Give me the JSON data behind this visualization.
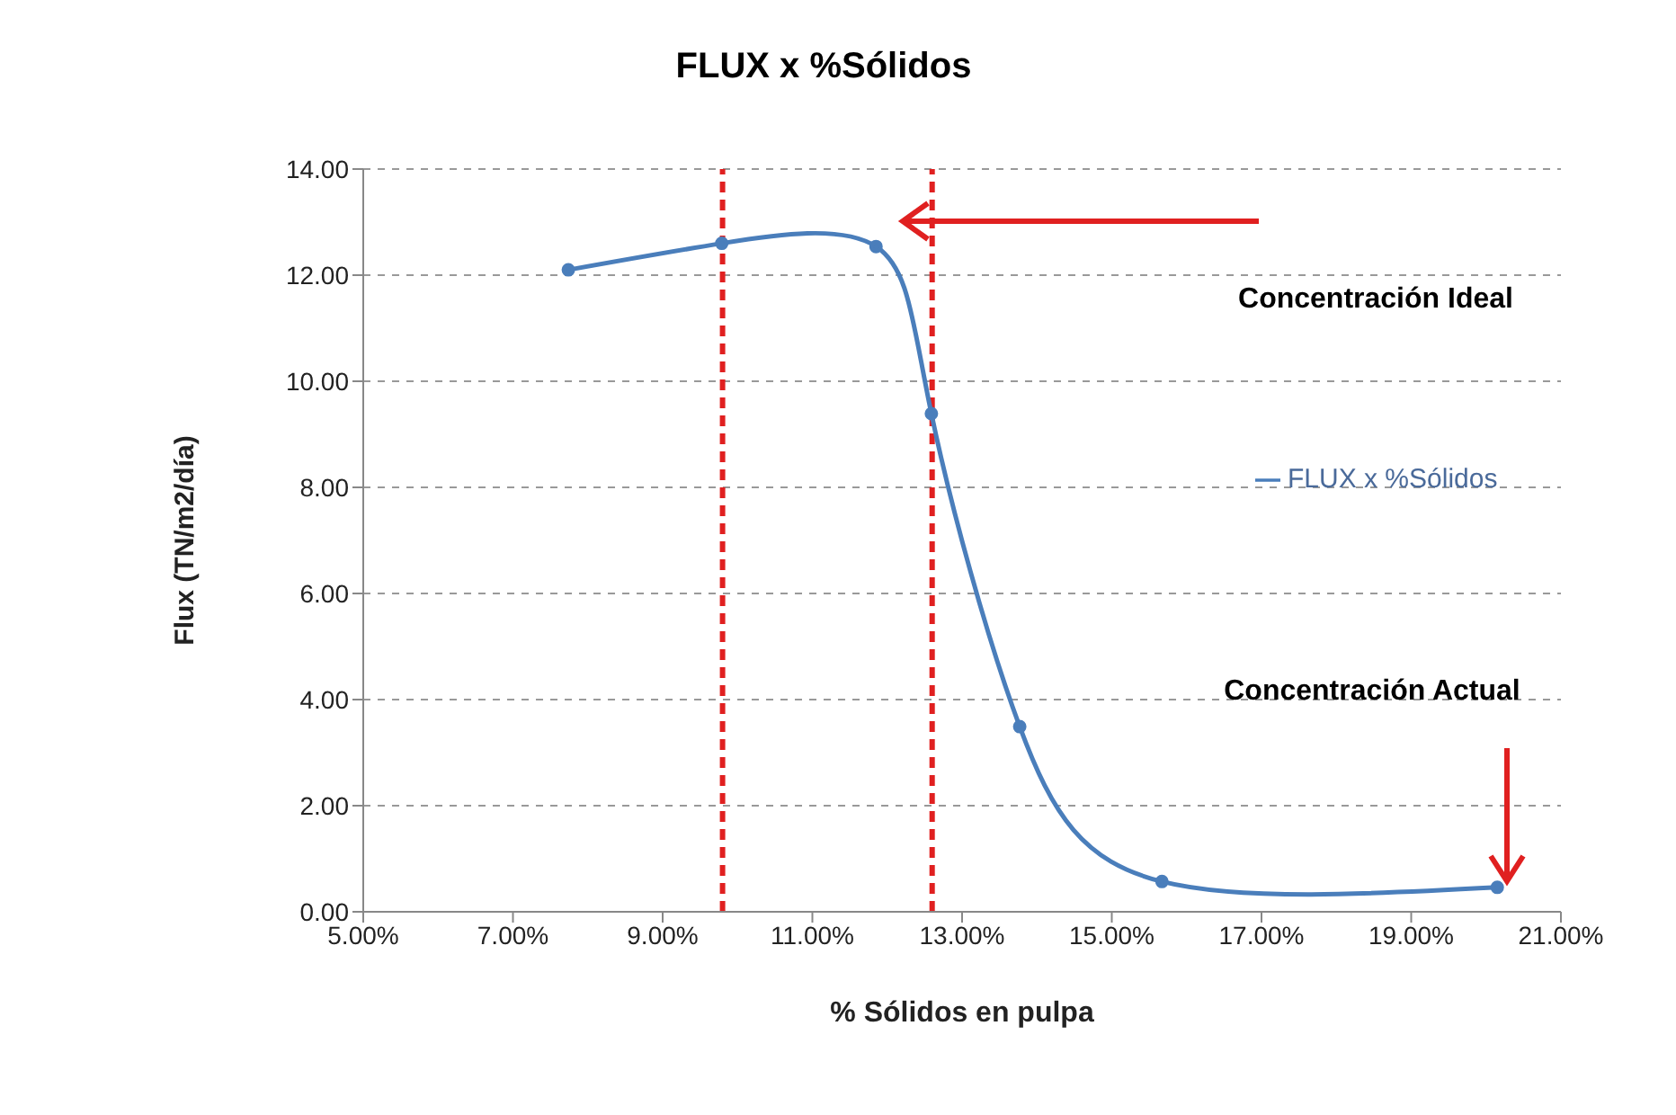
{
  "chart_data": {
    "type": "line",
    "title": "FLUX x %Sólidos",
    "xlabel": "% Sólidos en pulpa",
    "ylabel": "Flux (TN/m2/día)",
    "x": [
      7.74,
      9.79,
      11.85,
      12.59,
      13.77,
      15.67,
      20.15
    ],
    "series": [
      {
        "name": "FLUX x %Sólidos",
        "color": "#4a7ebb",
        "values": [
          12.1,
          12.6,
          12.54,
          9.39,
          3.49,
          0.57,
          0.46
        ]
      }
    ],
    "xlim": [
      5,
      21
    ],
    "xticks": [
      {
        "value": 5,
        "label": "5.00%"
      },
      {
        "value": 7,
        "label": "7.00%"
      },
      {
        "value": 9,
        "label": "9.00%"
      },
      {
        "value": 11,
        "label": "11.00%"
      },
      {
        "value": 13,
        "label": "13.00%"
      },
      {
        "value": 15,
        "label": "15.00%"
      },
      {
        "value": 17,
        "label": "17.00%"
      },
      {
        "value": 19,
        "label": "19.00%"
      },
      {
        "value": 21,
        "label": "21.00%"
      }
    ],
    "ylim": [
      0,
      14
    ],
    "yticks": [
      {
        "value": 0,
        "label": "0.00"
      },
      {
        "value": 2,
        "label": "2.00"
      },
      {
        "value": 4,
        "label": "4.00"
      },
      {
        "value": 6,
        "label": "6.00"
      },
      {
        "value": 8,
        "label": "8.00"
      },
      {
        "value": 10,
        "label": "10.00"
      },
      {
        "value": 12,
        "label": "12.00"
      },
      {
        "value": 14,
        "label": "14.00"
      }
    ],
    "ref_lines": [
      {
        "axis": "x",
        "value": 9.8,
        "color": "#e02020",
        "line_style": "dashed"
      },
      {
        "axis": "x",
        "value": 12.6,
        "color": "#e02020",
        "line_style": "dashed"
      }
    ],
    "annotations": [
      "Concentración Ideal",
      "Concentración Actual"
    ],
    "grid": "y",
    "legend": "right",
    "marker": "circle",
    "line_style": "solid"
  }
}
